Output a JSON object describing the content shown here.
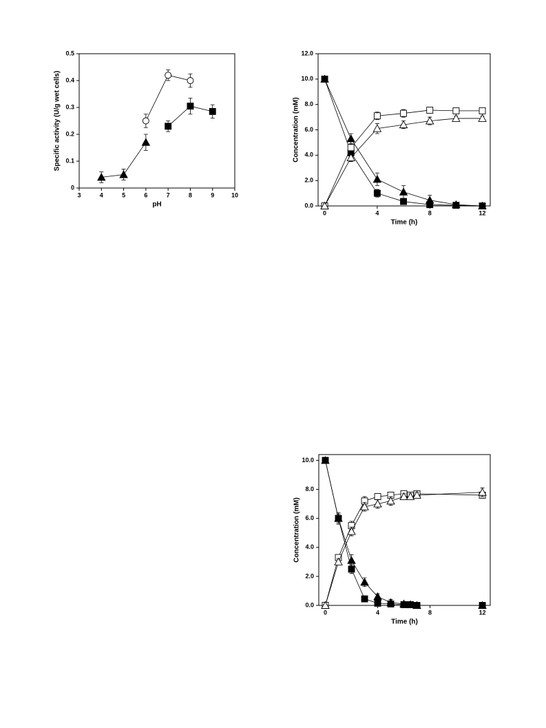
{
  "chart_data": [
    {
      "type": "scatter",
      "x_label": "pH",
      "y_label": "Specific activity (U/g wet cells)",
      "xlim": [
        3,
        10
      ],
      "ylim": [
        0,
        0.5
      ],
      "xticks": [
        3,
        4,
        5,
        6,
        7,
        8,
        9,
        10
      ],
      "yticks": [
        0,
        0.1,
        0.2,
        0.3,
        0.4,
        0.5
      ],
      "series": [
        {
          "marker": "triangle",
          "fill": "filled",
          "color": "#000000",
          "x": [
            4,
            5,
            6
          ],
          "values": [
            0.04,
            0.05,
            0.17
          ],
          "errors": [
            0.02,
            0.02,
            0.03
          ]
        },
        {
          "marker": "circle",
          "fill": "open",
          "color": "#000000",
          "x": [
            6,
            7,
            8
          ],
          "values": [
            0.25,
            0.42,
            0.4
          ],
          "errors": [
            0.025,
            0.02,
            0.025
          ]
        },
        {
          "marker": "square",
          "fill": "filled",
          "color": "#000000",
          "x": [
            7,
            8,
            9
          ],
          "values": [
            0.23,
            0.305,
            0.285
          ],
          "errors": [
            0.02,
            0.03,
            0.025
          ]
        }
      ]
    },
    {
      "type": "scatter",
      "x_label": "Time (h)",
      "y_label": "Concentration (mM)",
      "xlim": [
        -0.5,
        12.6
      ],
      "ylim": [
        0,
        12
      ],
      "xticks": [
        0,
        4,
        8,
        12
      ],
      "yticks": [
        {
          "value": 0,
          "label": "0.0"
        },
        {
          "value": 2,
          "label": "2.0"
        },
        {
          "value": 4,
          "label": "4.0"
        },
        {
          "value": 6,
          "label": "6.0"
        },
        {
          "value": 8,
          "label": "8.0"
        },
        {
          "value": 10,
          "label": "10.0"
        },
        {
          "value": 12,
          "label": "12.0"
        }
      ],
      "series": [
        {
          "marker": "square",
          "fill": "filled",
          "color": "#000000",
          "x": [
            0,
            2,
            4,
            6,
            8,
            10,
            12
          ],
          "values": [
            10,
            4.2,
            1.0,
            0.35,
            0.1,
            0.05,
            0
          ],
          "errors": [
            0.1,
            0.3,
            0.3,
            0.2,
            0.1,
            0.05,
            0.05
          ]
        },
        {
          "marker": "triangle",
          "fill": "filled",
          "color": "#000000",
          "x": [
            0,
            2,
            4,
            6,
            8,
            10,
            12
          ],
          "values": [
            10,
            5.3,
            2.1,
            1.1,
            0.45,
            0.1,
            0
          ],
          "errors": [
            0.1,
            0.4,
            0.5,
            0.5,
            0.4,
            0.1,
            0.05
          ]
        },
        {
          "marker": "square",
          "fill": "open",
          "color": "#000000",
          "x": [
            0,
            2,
            4,
            6,
            8,
            10,
            12
          ],
          "values": [
            0,
            4.6,
            7.1,
            7.3,
            7.55,
            7.5,
            7.5
          ],
          "errors": [
            0.05,
            0.3,
            0.3,
            0.3,
            0.2,
            0.1,
            0.1
          ]
        },
        {
          "marker": "triangle",
          "fill": "open",
          "color": "#000000",
          "x": [
            0,
            2,
            4,
            6,
            8,
            10,
            12
          ],
          "values": [
            0,
            3.8,
            6.1,
            6.4,
            6.7,
            6.9,
            6.9
          ],
          "errors": [
            0.05,
            0.3,
            0.4,
            0.3,
            0.3,
            0.2,
            0.2
          ]
        }
      ]
    },
    {
      "type": "scatter",
      "x_label": "Time (h)",
      "y_label": "Concentration (mM)",
      "xlim": [
        -0.5,
        12.6
      ],
      "ylim": [
        0,
        10.4
      ],
      "xticks": [
        0,
        4,
        8,
        12
      ],
      "yticks": [
        {
          "value": 0,
          "label": "0.0"
        },
        {
          "value": 2,
          "label": "2.0"
        },
        {
          "value": 4,
          "label": "4.0"
        },
        {
          "value": 6,
          "label": "6.0"
        },
        {
          "value": 8,
          "label": "8.0"
        },
        {
          "value": 10,
          "label": "10.0"
        }
      ],
      "series": [
        {
          "marker": "square",
          "fill": "filled",
          "color": "#000000",
          "x": [
            0,
            1,
            2,
            3,
            4,
            5,
            6,
            6.5,
            7,
            12
          ],
          "values": [
            10,
            6.0,
            2.5,
            0.45,
            0.15,
            0.1,
            0.05,
            0.05,
            0,
            0
          ],
          "errors": [
            0.1,
            0.3,
            0.3,
            0.1,
            0.1,
            0.05,
            0.05,
            0.05,
            0.05,
            0.05
          ]
        },
        {
          "marker": "triangle",
          "fill": "filled",
          "color": "#000000",
          "x": [
            0,
            1,
            2,
            3,
            4,
            5,
            6,
            6.5,
            7,
            12
          ],
          "values": [
            10,
            6.0,
            3.1,
            1.6,
            0.6,
            0.2,
            0.1,
            0.05,
            0,
            0
          ],
          "errors": [
            0.1,
            0.4,
            0.4,
            0.3,
            0.2,
            0.2,
            0.1,
            0.05,
            0.05,
            0.05
          ]
        },
        {
          "marker": "square",
          "fill": "open",
          "color": "#000000",
          "x": [
            0,
            1,
            2,
            3,
            4,
            5,
            6,
            6.5,
            7,
            12
          ],
          "values": [
            0,
            3.3,
            5.5,
            7.2,
            7.5,
            7.6,
            7.7,
            7.6,
            7.7,
            7.6
          ],
          "errors": [
            0.05,
            0.2,
            0.3,
            0.3,
            0.2,
            0.2,
            0.2,
            0.2,
            0.2,
            0.2
          ]
        },
        {
          "marker": "triangle",
          "fill": "open",
          "color": "#000000",
          "x": [
            0,
            1,
            2,
            3,
            4,
            5,
            6,
            6.5,
            7,
            12
          ],
          "values": [
            0,
            3.0,
            5.1,
            6.8,
            7.0,
            7.2,
            7.5,
            7.5,
            7.6,
            7.8
          ],
          "errors": [
            0.05,
            0.2,
            0.3,
            0.3,
            0.3,
            0.3,
            0.2,
            0.2,
            0.2,
            0.3
          ]
        }
      ]
    }
  ]
}
